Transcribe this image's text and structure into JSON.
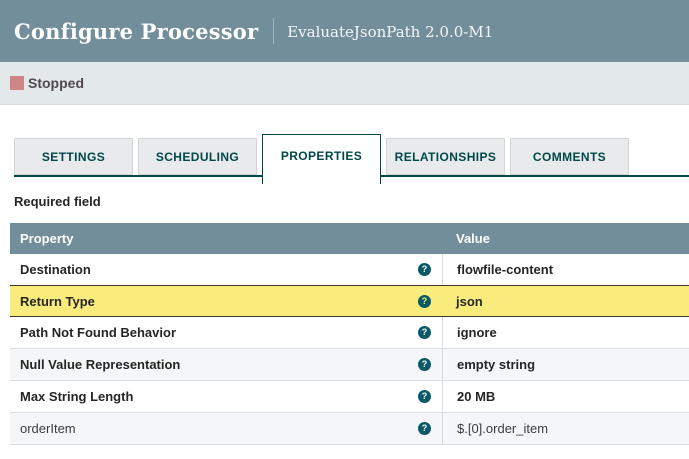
{
  "header": {
    "title": "Configure Processor",
    "subtitle": "EvaluateJsonPath 2.0.0-M1"
  },
  "status": {
    "label": "Stopped",
    "state_color": "#CE8585"
  },
  "tabs": [
    {
      "label": "SETTINGS",
      "active": false
    },
    {
      "label": "SCHEDULING",
      "active": false
    },
    {
      "label": "PROPERTIES",
      "active": true
    },
    {
      "label": "RELATIONSHIPS",
      "active": false
    },
    {
      "label": "COMMENTS",
      "active": false
    }
  ],
  "required_field_label": "Required field",
  "table": {
    "columns": {
      "property": "Property",
      "value": "Value"
    },
    "help_icon_glyph": "?",
    "rows": [
      {
        "property": "Destination",
        "value": "flowfile-content",
        "required": true,
        "highlighted": false
      },
      {
        "property": "Return Type",
        "value": "json",
        "required": true,
        "highlighted": true
      },
      {
        "property": "Path Not Found Behavior",
        "value": "ignore",
        "required": true,
        "highlighted": false
      },
      {
        "property": "Null Value Representation",
        "value": "empty string",
        "required": true,
        "highlighted": false
      },
      {
        "property": "Max String Length",
        "value": "20 MB",
        "required": true,
        "highlighted": false
      },
      {
        "property": "orderItem",
        "value": "$.[0].order_item",
        "required": false,
        "highlighted": false
      }
    ]
  },
  "colors": {
    "header_bg": "#728E9B",
    "tab_accent": "#004849",
    "highlight_row": "#F9EC7D",
    "status_bg": "#E3E8EA",
    "help_icon_bg": "#0B5966"
  }
}
